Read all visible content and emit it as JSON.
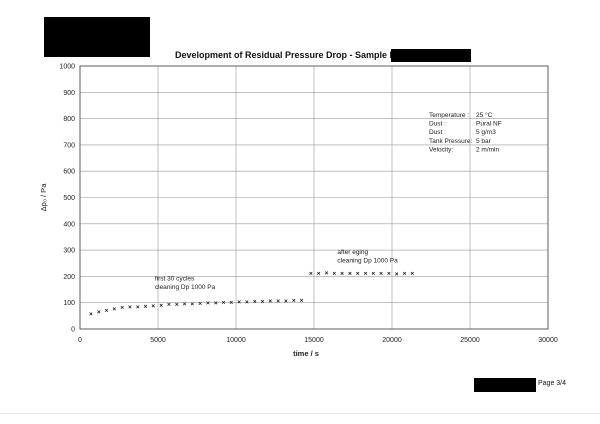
{
  "header": {
    "title": "Development of Residual Pressure Drop - Sample FW1:"
  },
  "footer": {
    "page_label": "Page 3/4"
  },
  "chart_data": {
    "type": "scatter",
    "title": "Development of Residual Pressure Drop - Sample FW1:",
    "xlabel": "time / s",
    "ylabel": "Δp₀ / Pa",
    "xlim": [
      0,
      30000
    ],
    "ylim": [
      0,
      1000
    ],
    "grid": true,
    "x_ticks": [
      0,
      5000,
      10000,
      15000,
      20000,
      25000,
      30000
    ],
    "y_ticks": [
      0,
      100,
      200,
      300,
      400,
      500,
      600,
      700,
      800,
      900,
      1000
    ],
    "marker_color": "#111111",
    "series": [
      {
        "x": [
          700,
          1200,
          1700,
          2200,
          2700,
          3200,
          3700,
          4200,
          4700,
          5200,
          5700,
          6200,
          6700,
          7200,
          7700,
          8200,
          8700,
          9200,
          9700,
          10200,
          10700,
          11200,
          11700,
          12200,
          12700,
          13200,
          13700,
          14200
        ],
        "y": [
          58,
          65,
          72,
          77,
          82,
          84,
          85,
          87,
          89,
          91,
          93,
          94,
          95,
          96,
          98,
          99,
          100,
          101,
          102,
          103,
          104,
          105,
          106,
          107,
          108,
          108,
          109,
          110
        ]
      },
      {
        "x": [
          14800,
          15300,
          15800,
          16300,
          16800,
          17300,
          17800,
          18300,
          18800,
          19300,
          19800,
          20300,
          20800,
          21300
        ],
        "y": [
          212,
          212,
          213,
          212,
          211,
          212,
          211,
          212,
          211,
          212,
          211,
          210,
          211,
          211
        ]
      }
    ],
    "annotations": [
      {
        "x": 4800,
        "y": 185,
        "lines": [
          "first 30 cycles",
          "cleaning Dp 1000 Pa"
        ]
      },
      {
        "x": 16500,
        "y": 285,
        "lines": [
          "after eging",
          "cleaning Dp 1000 Pa"
        ]
      }
    ],
    "info_box": [
      {
        "label": "Temperature :",
        "value": "25 °C"
      },
      {
        "label": "Dust :",
        "value": "Pural NF"
      },
      {
        "label": "Dust :",
        "value": "5 g/m3"
      },
      {
        "label": "Tank Pressure:",
        "value": "5 bar"
      },
      {
        "label": "Velocity:",
        "value": "2 m/min"
      }
    ]
  }
}
